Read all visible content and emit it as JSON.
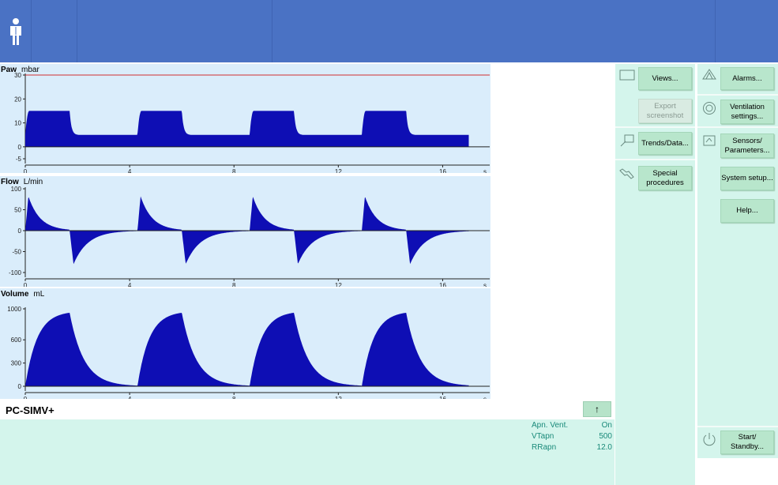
{
  "colors": {
    "header": "#4a72c4",
    "wave_bg": "#daedfb",
    "wave_fill": "#0e0eb4",
    "menu_bg": "#d4f5ec",
    "button_bg": "#b8e6cc",
    "info_text": "#1a8a7a",
    "alarm_line": "#d03030"
  },
  "header": {
    "patient_icon": "person-icon"
  },
  "charts": [
    {
      "type": "area",
      "title": "Paw",
      "unit": "mbar",
      "x_unit": "s",
      "x_ticks": [
        "0",
        "4",
        "8",
        "12",
        "16"
      ],
      "y_ticks": [
        "30",
        "20",
        "10",
        "0",
        "-5"
      ],
      "ylim": [
        -5,
        30
      ],
      "xlim": [
        0,
        17.5
      ],
      "alarm_limit": 30,
      "breath_starts": [
        0,
        4.3,
        8.6,
        12.9
      ],
      "inspiration_time": 1.7,
      "peak": 15,
      "peep": 5,
      "end_time": 17
    },
    {
      "type": "area",
      "title": "Flow",
      "unit": "L/min",
      "x_unit": "s",
      "x_ticks": [
        "0",
        "4",
        "8",
        "12",
        "16"
      ],
      "y_ticks": [
        "100",
        "50",
        "0",
        "-50",
        "-100"
      ],
      "ylim": [
        -100,
        100
      ],
      "xlim": [
        0,
        17.5
      ],
      "breath_starts": [
        0,
        4.3,
        8.6,
        12.9
      ],
      "inspiration_time": 1.7,
      "insp_peak": 82,
      "exp_peak": -80,
      "end_time": 17
    },
    {
      "type": "area",
      "title": "Volume",
      "unit": "mL",
      "x_unit": "s",
      "x_ticks": [
        "0",
        "4",
        "8",
        "12",
        "16"
      ],
      "y_ticks": [
        "1000",
        "600",
        "300",
        "0"
      ],
      "ylim": [
        0,
        1000
      ],
      "xlim": [
        0,
        17.5
      ],
      "breath_starts": [
        0,
        4.3,
        8.6,
        12.9
      ],
      "inspiration_time": 1.7,
      "peak": 950,
      "end_time": 17
    }
  ],
  "mode": {
    "label": "PC-SIMV+",
    "arrow_label": "↑"
  },
  "apnea_info": [
    {
      "label": "Apn. Vent.",
      "value": "On"
    },
    {
      "label": "VTapn",
      "value": "500"
    },
    {
      "label": "RRapn",
      "value": "12.0"
    }
  ],
  "menu_left": {
    "views": "Views...",
    "export": "Export\nscreenshot",
    "trends": "Trends/Data...",
    "special": "Special\nprocedures"
  },
  "menu_right": {
    "alarms": "Alarms...",
    "ventilation": "Ventilation\nsettings...",
    "sensors": "Sensors/\nParameters...",
    "system": "System setup...",
    "help": "Help...",
    "standby": "Start/ Standby..."
  },
  "icons": {
    "views": "monitor-icon",
    "trends": "magnifier-icon",
    "special": "hand-icon",
    "alarms": "bell-icon",
    "ventilation": "lungs-icon",
    "sensors": "sensor-icon",
    "standby": "power-icon"
  }
}
